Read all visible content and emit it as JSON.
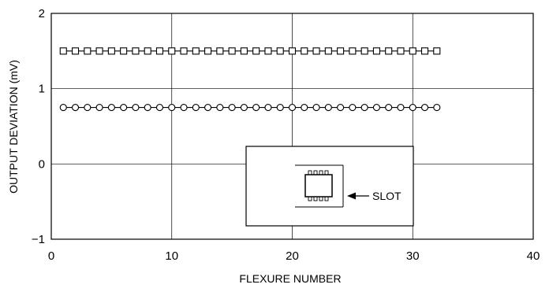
{
  "chart_data": {
    "type": "line",
    "xlabel": "FLEXURE NUMBER",
    "ylabel": "OUTPUT DEVIATION (mV)",
    "xlim": [
      0,
      40
    ],
    "ylim": [
      -1,
      2
    ],
    "x_ticks": [
      0,
      10,
      20,
      30,
      40
    ],
    "y_ticks": [
      -1,
      0,
      1,
      2
    ],
    "x_tick_labels": [
      "0",
      "10",
      "20",
      "30",
      "40"
    ],
    "y_tick_labels": [
      "−1",
      "0",
      "1",
      "2"
    ],
    "grid": true,
    "series": [
      {
        "marker": "square",
        "x": [
          1,
          2,
          3,
          4,
          5,
          6,
          7,
          8,
          9,
          10,
          11,
          12,
          13,
          14,
          15,
          16,
          17,
          18,
          19,
          20,
          21,
          22,
          23,
          24,
          25,
          26,
          27,
          28,
          29,
          30,
          31,
          32
        ],
        "values": [
          1.5,
          1.5,
          1.5,
          1.5,
          1.5,
          1.5,
          1.5,
          1.5,
          1.5,
          1.5,
          1.5,
          1.5,
          1.5,
          1.5,
          1.5,
          1.5,
          1.5,
          1.5,
          1.5,
          1.5,
          1.5,
          1.5,
          1.5,
          1.5,
          1.5,
          1.5,
          1.5,
          1.5,
          1.5,
          1.5,
          1.5,
          1.5
        ]
      },
      {
        "marker": "circle",
        "x": [
          1,
          2,
          3,
          4,
          5,
          6,
          7,
          8,
          9,
          10,
          11,
          12,
          13,
          14,
          15,
          16,
          17,
          18,
          19,
          20,
          21,
          22,
          23,
          24,
          25,
          26,
          27,
          28,
          29,
          30,
          31,
          32
        ],
        "values": [
          0.75,
          0.75,
          0.75,
          0.75,
          0.75,
          0.75,
          0.75,
          0.75,
          0.75,
          0.75,
          0.75,
          0.75,
          0.75,
          0.75,
          0.75,
          0.75,
          0.75,
          0.75,
          0.75,
          0.75,
          0.75,
          0.75,
          0.75,
          0.75,
          0.75,
          0.75,
          0.75,
          0.75,
          0.75,
          0.75,
          0.75,
          0.75
        ]
      }
    ],
    "inset": {
      "label": "SLOT"
    }
  }
}
